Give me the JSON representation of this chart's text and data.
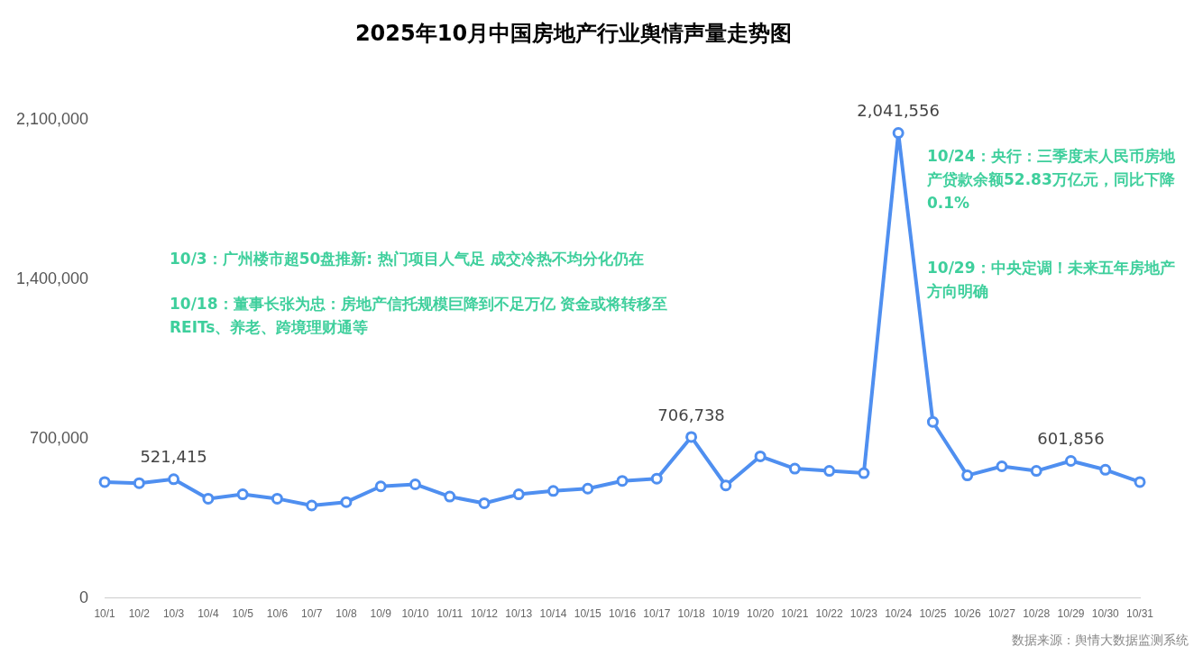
{
  "chart_data": {
    "type": "line",
    "title": "2025年10月中国房地产行业舆情声量走势图",
    "categories": [
      "10/1",
      "10/2",
      "10/3",
      "10/4",
      "10/5",
      "10/6",
      "10/7",
      "10/8",
      "10/9",
      "10/10",
      "10/11",
      "10/12",
      "10/13",
      "10/14",
      "10/15",
      "10/16",
      "10/17",
      "10/18",
      "10/19",
      "10/20",
      "10/21",
      "10/22",
      "10/23",
      "10/24",
      "10/25",
      "10/26",
      "10/27",
      "10/28",
      "10/29",
      "10/30",
      "10/31"
    ],
    "series": [
      {
        "color": "#4f8ff0",
        "values": [
          509000,
          504000,
          521415,
          436000,
          455000,
          436000,
          406000,
          421000,
          490000,
          499000,
          445000,
          416000,
          455000,
          470000,
          480000,
          514000,
          524000,
          706738,
          494000,
          622000,
          568000,
          558000,
          548000,
          2041556,
          773000,
          538000,
          578000,
          558000,
          601856,
          563000,
          509000
        ],
        "value_labels": [
          null,
          null,
          "521,415",
          null,
          null,
          null,
          null,
          null,
          null,
          null,
          null,
          null,
          null,
          null,
          null,
          null,
          null,
          "706,738",
          null,
          null,
          null,
          null,
          null,
          "2,041,556",
          null,
          null,
          null,
          null,
          "601,856",
          null,
          null
        ]
      }
    ],
    "ylim": [
      0,
      2100000
    ],
    "yticks": [
      {
        "value": 0,
        "label": "0"
      },
      {
        "value": 700000,
        "label": "700,000"
      },
      {
        "value": 1400000,
        "label": "1,400,000"
      },
      {
        "value": 2100000,
        "label": "2,100,000"
      }
    ],
    "grid": false,
    "legend": false,
    "marker": "circle",
    "line_style": "solid",
    "annotations": [
      "10/3：广州楼市超50盘推新: 热门项目人气足 成交冷热不均分化仍在",
      "10/18：董事长张为忠：房地产信托规模巨降到不足万亿 资金或将转移至REITs、养老、跨境理财通等",
      "10/24：央行：三季度末人民币房地产贷款余额52.83万亿元，同比下降0.1%",
      "10/29：中央定调！未来五年房地产方向明确",
      "数据来源：舆情大数据监测系统"
    ]
  }
}
